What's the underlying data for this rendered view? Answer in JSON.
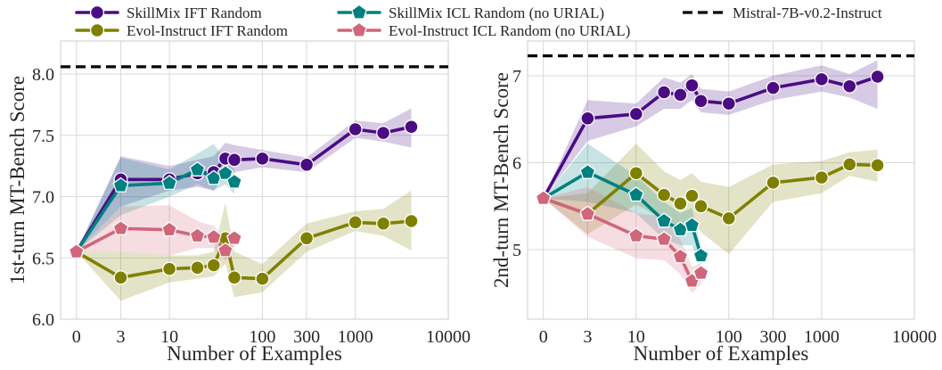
{
  "chart_data": {
    "type": "line",
    "legend": "top",
    "grid": true,
    "series": [
      {
        "name": "SkillMix IFT Random",
        "color": "#4b0c83",
        "marker": "circle"
      },
      {
        "name": "Evol-Instruct IFT Random",
        "color": "#808000",
        "marker": "circle"
      },
      {
        "name": "SkillMix ICL Random (no URIAL)",
        "color": "#008080",
        "marker": "pentagon"
      },
      {
        "name": "Evol-Instruct ICL Random (no URIAL)",
        "color": "#d0667a",
        "marker": "pentagon"
      }
    ],
    "reference": {
      "name": "Mistral-7B-v0.2-Instruct",
      "color": "#000000",
      "style": "dashed"
    },
    "panels": [
      {
        "xlabel": "Number of Examples",
        "ylabel": "1st-turn MT-Bench Score",
        "xscale": "log",
        "xlim": [
          0,
          10000
        ],
        "ylim": [
          6.0,
          8.27
        ],
        "xticks": [
          0,
          3,
          10,
          100,
          300,
          1000,
          10000
        ],
        "xtick_labels": [
          "0",
          "3",
          "10",
          "100",
          "300",
          "1000",
          "10000"
        ],
        "yticks": [
          6.0,
          6.5,
          7.0,
          7.5,
          8.0
        ],
        "ytick_labels": [
          "6.0",
          "6.5",
          "7.0",
          "7.5",
          "8.0"
        ],
        "reference_y": 8.06,
        "lines": [
          {
            "x": [
              0,
              3,
              10,
              20,
              30,
              40,
              50,
              100,
              300,
              1000,
              2000,
              4000
            ],
            "y": [
              6.55,
              7.14,
              7.14,
              7.19,
              7.2,
              7.31,
              7.3,
              7.31,
              7.26,
              7.55,
              7.52,
              7.57
            ],
            "ci_low": [
              6.55,
              6.92,
              7.05,
              7.08,
              7.05,
              7.18,
              7.2,
              7.24,
              7.2,
              7.48,
              7.45,
              7.4
            ],
            "ci_high": [
              6.55,
              7.33,
              7.25,
              7.3,
              7.33,
              7.44,
              7.42,
              7.38,
              7.32,
              7.62,
              7.6,
              7.72
            ]
          },
          {
            "x": [
              0,
              3,
              10,
              20,
              30,
              40,
              50,
              100,
              300,
              1000,
              2000,
              4000
            ],
            "y": [
              6.55,
              6.34,
              6.41,
              6.42,
              6.44,
              6.66,
              6.34,
              6.33,
              6.66,
              6.79,
              6.78,
              6.8
            ],
            "ci_low": [
              6.55,
              6.15,
              6.3,
              6.33,
              6.35,
              6.45,
              6.18,
              6.22,
              6.55,
              6.72,
              6.68,
              6.56
            ],
            "ci_high": [
              6.55,
              6.55,
              6.52,
              6.52,
              6.55,
              6.95,
              6.55,
              6.45,
              6.78,
              6.88,
              6.9,
              7.05
            ]
          },
          {
            "x": [
              0,
              3,
              10,
              20,
              30,
              40,
              50
            ],
            "y": [
              6.55,
              7.09,
              7.11,
              7.22,
              7.15,
              7.19,
              7.12
            ],
            "ci_low": [
              6.55,
              6.85,
              7.0,
              7.1,
              7.05,
              7.1,
              7.02
            ],
            "ci_high": [
              6.55,
              7.32,
              7.22,
              7.35,
              7.43,
              7.3,
              7.22
            ]
          },
          {
            "x": [
              0,
              3,
              10,
              20,
              30,
              40,
              50
            ],
            "y": [
              6.55,
              6.74,
              6.73,
              6.68,
              6.67,
              6.56,
              6.66
            ],
            "ci_low": [
              6.55,
              6.55,
              6.52,
              6.58,
              6.58,
              6.48,
              6.6
            ],
            "ci_high": [
              6.55,
              6.92,
              6.93,
              6.8,
              6.76,
              6.66,
              6.7
            ]
          }
        ]
      },
      {
        "xlabel": "Number of Examples",
        "ylabel": "2nd-turn MT-Bench Score",
        "xscale": "log",
        "xlim": [
          0,
          10000
        ],
        "ylim": [
          4.2,
          7.4
        ],
        "xticks": [
          0,
          3,
          10,
          100,
          300,
          1000,
          10000
        ],
        "xtick_labels": [
          "0",
          "3",
          "10",
          "100",
          "300",
          "1000",
          "10000"
        ],
        "yticks": [
          5,
          6,
          7
        ],
        "ytick_labels": [
          "5",
          "6",
          "7"
        ],
        "reference_y": 7.23,
        "lines": [
          {
            "x": [
              0,
              3,
              10,
              20,
              30,
              40,
              50,
              100,
              300,
              1000,
              2000,
              4000
            ],
            "y": [
              5.59,
              6.51,
              6.56,
              6.81,
              6.78,
              6.89,
              6.71,
              6.68,
              6.86,
              6.96,
              6.88,
              6.99
            ],
            "ci_low": [
              5.59,
              6.25,
              6.42,
              6.62,
              6.62,
              6.72,
              6.58,
              6.55,
              6.72,
              6.82,
              6.75,
              6.62
            ],
            "ci_high": [
              5.59,
              6.72,
              6.68,
              6.98,
              6.92,
              7.02,
              6.85,
              6.82,
              7.0,
              7.12,
              7.02,
              7.18
            ]
          },
          {
            "x": [
              0,
              3,
              10,
              20,
              30,
              40,
              50,
              100,
              300,
              1000,
              2000,
              4000
            ],
            "y": [
              5.59,
              5.41,
              5.88,
              5.63,
              5.53,
              5.62,
              5.5,
              5.36,
              5.77,
              5.83,
              5.98,
              5.97
            ],
            "ci_low": [
              5.59,
              5.18,
              5.52,
              5.35,
              5.25,
              5.35,
              5.2,
              4.95,
              5.55,
              5.65,
              5.85,
              5.78
            ],
            "ci_high": [
              5.59,
              5.65,
              6.22,
              5.9,
              5.8,
              5.88,
              5.78,
              5.72,
              5.98,
              6.02,
              6.12,
              6.15
            ]
          },
          {
            "x": [
              0,
              3,
              10,
              20,
              30,
              40,
              50
            ],
            "y": [
              5.59,
              5.89,
              5.63,
              5.33,
              5.23,
              5.28,
              4.93
            ],
            "ci_low": [
              5.59,
              5.55,
              5.42,
              5.12,
              5.05,
              5.05,
              4.82
            ],
            "ci_high": [
              5.59,
              6.22,
              5.85,
              5.55,
              5.42,
              5.48,
              5.02
            ]
          },
          {
            "x": [
              0,
              3,
              10,
              20,
              30,
              40,
              50
            ],
            "y": [
              5.59,
              5.41,
              5.16,
              5.12,
              4.92,
              4.64,
              4.73
            ],
            "ci_low": [
              5.59,
              5.15,
              4.9,
              4.88,
              4.72,
              4.5,
              4.6
            ],
            "ci_high": [
              5.59,
              5.72,
              5.42,
              5.38,
              5.12,
              4.8,
              4.85
            ]
          }
        ]
      }
    ]
  }
}
